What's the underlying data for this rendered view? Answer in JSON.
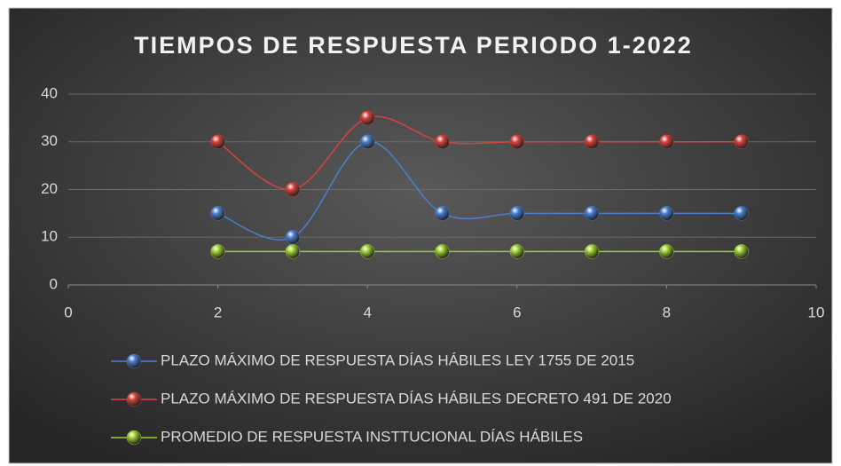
{
  "chart_data": {
    "type": "scatter",
    "title": "TIEMPOS DE RESPUESTA PERIODO 1-2022",
    "x": [
      2,
      3,
      4,
      5,
      6,
      7,
      8,
      9
    ],
    "series": [
      {
        "name": "PLAZO MÁXIMO DE RESPUESTA DÍAS HÁBILES LEY 1755 DE 2015",
        "color": "#4a7fd0",
        "values": [
          15,
          10,
          30,
          15,
          15,
          15,
          15,
          15
        ]
      },
      {
        "name": "PLAZO MÁXIMO DE RESPUESTA DÍAS HÁBILES DECRETO 491 DE 2020",
        "color": "#d9423b",
        "values": [
          30,
          20,
          35,
          30,
          30,
          30,
          30,
          30
        ]
      },
      {
        "name": "PROMEDIO DE RESPUESTA INSTTUCIONAL DÍAS HÁBILES",
        "color": "#9ccf2f",
        "values": [
          7,
          7,
          7,
          7,
          7,
          7,
          7,
          7
        ]
      }
    ],
    "xlim": [
      0,
      10
    ],
    "xticks": [
      0,
      2,
      4,
      6,
      8,
      10
    ],
    "ylim": [
      0,
      40
    ],
    "yticks": [
      0,
      10,
      20,
      30,
      40
    ],
    "grid": true,
    "smooth": true,
    "legend": "bottom"
  }
}
